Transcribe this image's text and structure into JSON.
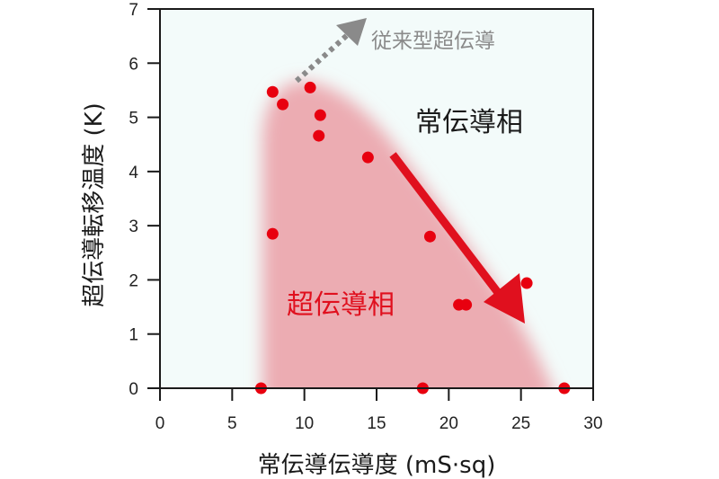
{
  "chart_data": {
    "type": "scatter",
    "title": "",
    "xlabel": "常伝導伝導度 (mS·sq)",
    "ylabel": "超伝導転移温度 (K)",
    "xlim": [
      0,
      30
    ],
    "ylim": [
      0,
      7
    ],
    "xticks": [
      0,
      5,
      10,
      15,
      20,
      25,
      30
    ],
    "yticks": [
      0,
      1,
      2,
      3,
      4,
      5,
      6,
      7
    ],
    "grid": false,
    "legend": null,
    "series": [
      {
        "name": "measured",
        "color": "#e8000f",
        "points": [
          {
            "x": 7.0,
            "y": 0.0
          },
          {
            "x": 7.8,
            "y": 5.47
          },
          {
            "x": 8.5,
            "y": 5.24
          },
          {
            "x": 10.4,
            "y": 5.55
          },
          {
            "x": 11.1,
            "y": 5.04
          },
          {
            "x": 11.0,
            "y": 4.66
          },
          {
            "x": 14.4,
            "y": 4.26
          },
          {
            "x": 7.8,
            "y": 2.85
          },
          {
            "x": 18.7,
            "y": 2.8
          },
          {
            "x": 18.2,
            "y": 0.0
          },
          {
            "x": 20.7,
            "y": 1.54
          },
          {
            "x": 21.2,
            "y": 1.54
          },
          {
            "x": 25.4,
            "y": 1.94
          },
          {
            "x": 28.0,
            "y": 0.0
          }
        ]
      }
    ],
    "regions": [
      {
        "name": "superconducting-phase",
        "label": "超伝導相",
        "color": "#e8a0a8"
      },
      {
        "name": "normal-phase",
        "label": "常伝導相",
        "color": "#f3fbfa"
      }
    ],
    "annotations": [
      {
        "text": "常伝導相",
        "x": 18.0,
        "y": 5.0
      },
      {
        "text": "超伝導相",
        "x": 12.0,
        "y": 1.55
      },
      {
        "text": "従来型超伝導",
        "x": 14.9,
        "y": 6.48
      },
      {
        "type": "arrow",
        "label": "red-arrow",
        "from": [
          16.0,
          4.3
        ],
        "to": [
          25.0,
          1.2
        ],
        "color": "#e0101e"
      },
      {
        "type": "dotted-arrow",
        "label": "conventional-direction",
        "from": [
          9.5,
          5.65
        ],
        "to": [
          14.2,
          6.85
        ],
        "color": "#8a8a8a"
      }
    ]
  },
  "labels": {
    "xlabel": "常伝導伝導度 (mS·sq)",
    "ylabel": "超伝導転移温度 (K)",
    "normal_phase": "常伝導相",
    "super_phase": "超伝導相",
    "conventional": "従来型超伝導"
  },
  "colors": {
    "background": "#f3fbfa",
    "region": "#ecacb2",
    "point": "#e8000f",
    "arrow": "#e0101e",
    "dotted_arrow": "#8a8a8a",
    "axis": "#1a1a1a"
  }
}
